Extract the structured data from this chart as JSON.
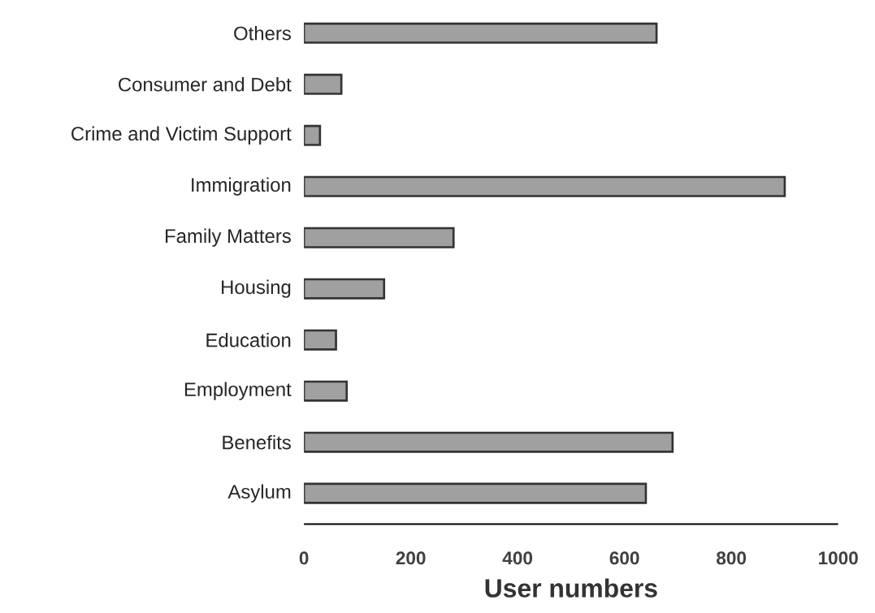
{
  "chart_data": {
    "type": "bar",
    "orientation": "horizontal",
    "xlabel": "User numbers",
    "categories": [
      "Others",
      "Consumer and Debt",
      "Crime and Victim Support",
      "Immigration",
      "Family Matters",
      "Housing",
      "Education",
      "Employment",
      "Benefits",
      "Asylum"
    ],
    "values": [
      660,
      70,
      30,
      900,
      280,
      150,
      60,
      80,
      690,
      640
    ],
    "color": "#a0a0a0",
    "xlim": [
      0,
      1000
    ],
    "xticks": [
      0,
      200,
      400,
      600,
      800,
      1000
    ]
  }
}
